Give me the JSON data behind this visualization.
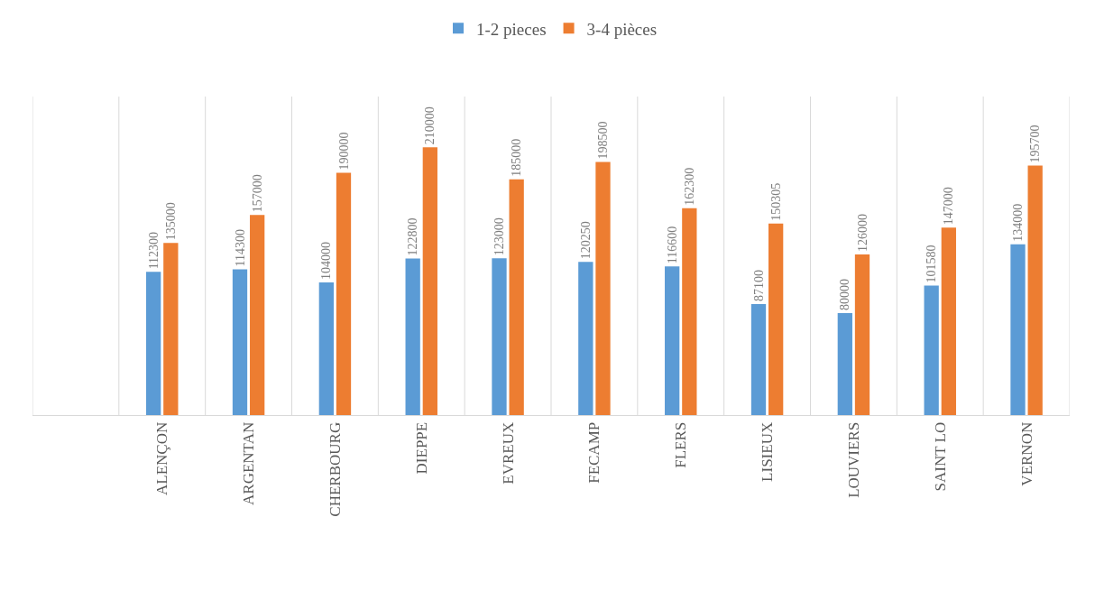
{
  "chart_data": {
    "type": "bar",
    "categories": [
      null,
      "ALENÇON",
      "ARGENTAN",
      "CHERBOURG",
      "DIEPPE",
      "EVREUX",
      "FECAMP",
      "FLERS",
      "LISIEUX",
      "LOUVIERS",
      "SAINT LO",
      "VERNON"
    ],
    "series": [
      {
        "name": "1-2 pieces",
        "color": "#5b9bd5",
        "values": [
          null,
          112300,
          114300,
          104000,
          122800,
          123000,
          120250,
          116600,
          87100,
          80000,
          101580,
          134000
        ]
      },
      {
        "name": "3-4 pièces",
        "color": "#ed7d31",
        "values": [
          null,
          135000,
          157000,
          190000,
          210000,
          185000,
          198500,
          162300,
          150305,
          126000,
          147000,
          195700
        ]
      }
    ],
    "data_labels": true,
    "grid": "x",
    "legend": "top",
    "tick_labels": "x"
  }
}
